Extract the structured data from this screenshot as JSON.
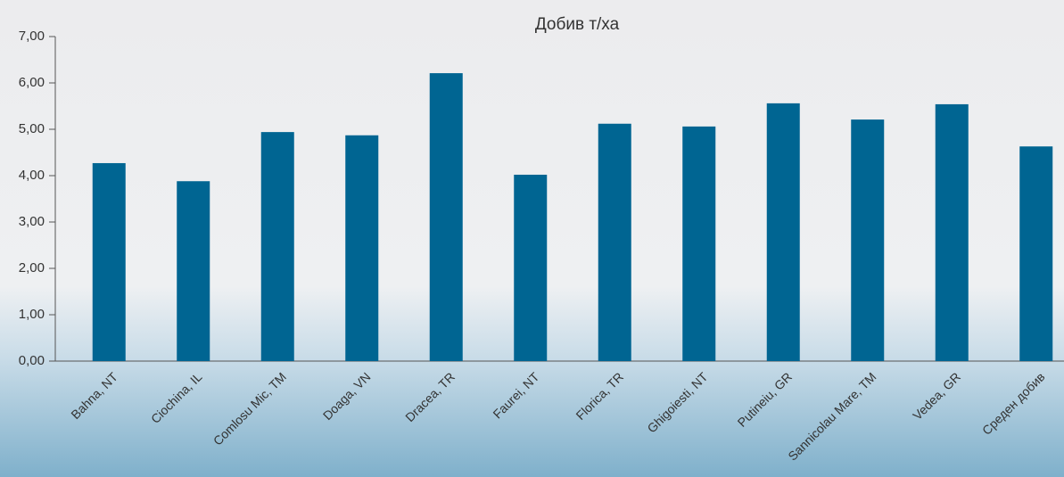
{
  "chart_data": {
    "type": "bar",
    "title": "Добив т/ха",
    "categories": [
      "Bahna, NT",
      "Ciochina, IL",
      "Comlosu Mic, TM",
      "Doaga, VN",
      "Dracea, TR",
      "Faurei, NT",
      "Florica, TR",
      "Ghigoiesti, NT",
      "Putineiu, GR",
      "Sannicolau Mare, TM",
      "Vedea, GR",
      "Среден добив"
    ],
    "values": [
      4.27,
      3.88,
      4.94,
      4.87,
      6.21,
      4.02,
      5.12,
      5.06,
      5.56,
      5.21,
      5.54,
      4.63
    ],
    "color": "#006592",
    "ylim": [
      0,
      7
    ],
    "yticks": [
      {
        "value": 0,
        "label": "0,00"
      },
      {
        "value": 1,
        "label": "1,00"
      },
      {
        "value": 2,
        "label": "2,00"
      },
      {
        "value": 3,
        "label": "3,00"
      },
      {
        "value": 4,
        "label": "4,00"
      },
      {
        "value": 5,
        "label": "5,00"
      },
      {
        "value": 6,
        "label": "6,00"
      },
      {
        "value": 7,
        "label": "7,00"
      }
    ],
    "grid": false
  }
}
